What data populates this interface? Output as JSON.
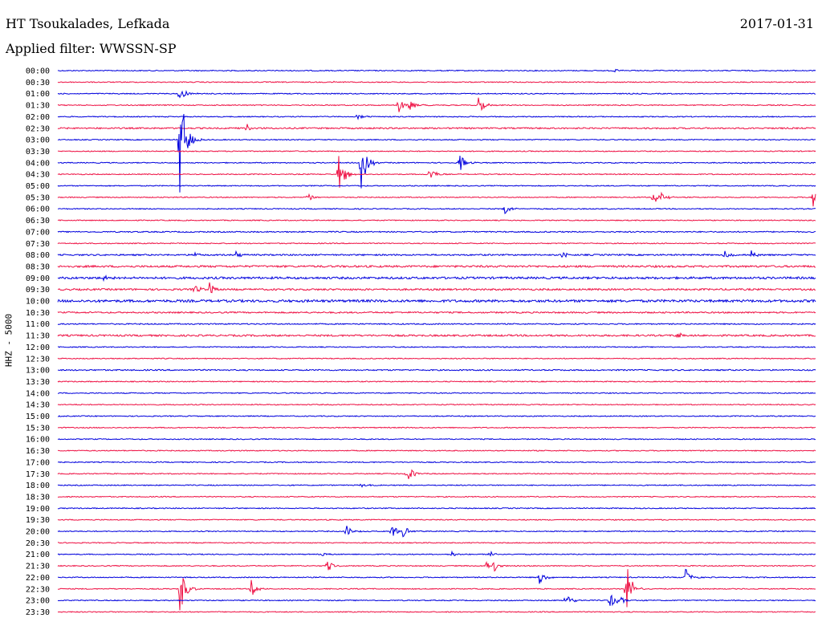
{
  "header": {
    "station": "HT Tsoukalades, Lefkada",
    "date": "2017-01-31",
    "filter_label": "Applied filter: WWSSN-SP"
  },
  "colors": {
    "odd_trace": "#0000dd",
    "even_trace": "#ee1144"
  },
  "chart_data": {
    "type": "line",
    "title": "HT Tsoukalades, Lefkada",
    "subtitle": "Applied filter: WWSSN-SP",
    "ylabel": "HHZ - 5000",
    "xlabel": "",
    "grid": false,
    "rows": [
      "00:00",
      "00:30",
      "01:00",
      "01:30",
      "02:00",
      "02:30",
      "03:00",
      "03:30",
      "04:00",
      "04:30",
      "05:00",
      "05:30",
      "06:00",
      "06:30",
      "07:00",
      "07:30",
      "08:00",
      "08:30",
      "09:00",
      "09:30",
      "10:00",
      "10:30",
      "11:00",
      "11:30",
      "12:00",
      "12:30",
      "13:00",
      "13:30",
      "14:00",
      "14:30",
      "15:00",
      "15:30",
      "16:00",
      "16:30",
      "17:00",
      "17:30",
      "18:00",
      "18:30",
      "19:00",
      "19:30",
      "20:00",
      "20:30",
      "21:00",
      "21:30",
      "22:00",
      "22:30",
      "23:00",
      "23:30"
    ],
    "row_colors": [
      "blue",
      "red"
    ],
    "noise_levels": [
      1,
      1,
      1,
      1,
      1,
      1.5,
      1,
      1,
      1,
      1,
      1,
      1,
      1,
      1,
      1.2,
      1,
      1.5,
      2,
      2.2,
      1.8,
      2.5,
      1.5,
      1.2,
      1.8,
      1,
      1,
      1.3,
      1,
      1,
      1,
      1,
      1,
      1,
      1,
      1,
      1,
      1,
      1,
      1,
      1,
      1,
      1,
      1,
      1,
      1,
      1,
      1,
      1
    ],
    "events": [
      {
        "row": 0,
        "t": 0.735,
        "amp": 2.5
      },
      {
        "row": 1,
        "t": 0.36,
        "amp": 2.5
      },
      {
        "row": 2,
        "t": 0.16,
        "amp": 10
      },
      {
        "row": 3,
        "t": 0.45,
        "amp": 9
      },
      {
        "row": 3,
        "t": 0.465,
        "amp": 7
      },
      {
        "row": 3,
        "t": 0.555,
        "amp": 12
      },
      {
        "row": 4,
        "t": 0.396,
        "amp": 4
      },
      {
        "row": 5,
        "t": 0.25,
        "amp": 7
      },
      {
        "row": 6,
        "t": 0.16,
        "amp": 90
      },
      {
        "row": 8,
        "t": 0.4,
        "amp": 35
      },
      {
        "row": 8,
        "t": 0.53,
        "amp": 12
      },
      {
        "row": 9,
        "t": 0.37,
        "amp": 30
      },
      {
        "row": 9,
        "t": 0.49,
        "amp": 12
      },
      {
        "row": 11,
        "t": 0.33,
        "amp": 5
      },
      {
        "row": 11,
        "t": 0.785,
        "amp": 10
      },
      {
        "row": 11,
        "t": 0.795,
        "amp": 8
      },
      {
        "row": 11,
        "t": 0.995,
        "amp": 20
      },
      {
        "row": 12,
        "t": 0.59,
        "amp": 7
      },
      {
        "row": 16,
        "t": 0.18,
        "amp": 4
      },
      {
        "row": 16,
        "t": 0.235,
        "amp": 5
      },
      {
        "row": 16,
        "t": 0.665,
        "amp": 4
      },
      {
        "row": 16,
        "t": 0.88,
        "amp": 5
      },
      {
        "row": 16,
        "t": 0.915,
        "amp": 6
      },
      {
        "row": 18,
        "t": 0.06,
        "amp": 4
      },
      {
        "row": 19,
        "t": 0.18,
        "amp": 6
      },
      {
        "row": 19,
        "t": 0.2,
        "amp": 8
      },
      {
        "row": 23,
        "t": 0.815,
        "amp": 6
      },
      {
        "row": 35,
        "t": 0.46,
        "amp": 15
      },
      {
        "row": 36,
        "t": 0.4,
        "amp": 3
      },
      {
        "row": 40,
        "t": 0.38,
        "amp": 9
      },
      {
        "row": 40,
        "t": 0.44,
        "amp": 10
      },
      {
        "row": 40,
        "t": 0.455,
        "amp": 8
      },
      {
        "row": 42,
        "t": 0.348,
        "amp": 4
      },
      {
        "row": 42,
        "t": 0.52,
        "amp": 4
      },
      {
        "row": 42,
        "t": 0.57,
        "amp": 6
      },
      {
        "row": 43,
        "t": 0.354,
        "amp": 10
      },
      {
        "row": 43,
        "t": 0.565,
        "amp": 9
      },
      {
        "row": 43,
        "t": 0.575,
        "amp": 8
      },
      {
        "row": 44,
        "t": 0.635,
        "amp": 11
      },
      {
        "row": 44,
        "t": 0.828,
        "amp": 12
      },
      {
        "row": 45,
        "t": 0.16,
        "amp": 38
      },
      {
        "row": 45,
        "t": 0.255,
        "amp": 12
      },
      {
        "row": 45,
        "t": 0.75,
        "amp": 35
      },
      {
        "row": 46,
        "t": 0.67,
        "amp": 12
      },
      {
        "row": 46,
        "t": 0.728,
        "amp": 11
      },
      {
        "row": 46,
        "t": 0.738,
        "amp": 10
      }
    ]
  }
}
